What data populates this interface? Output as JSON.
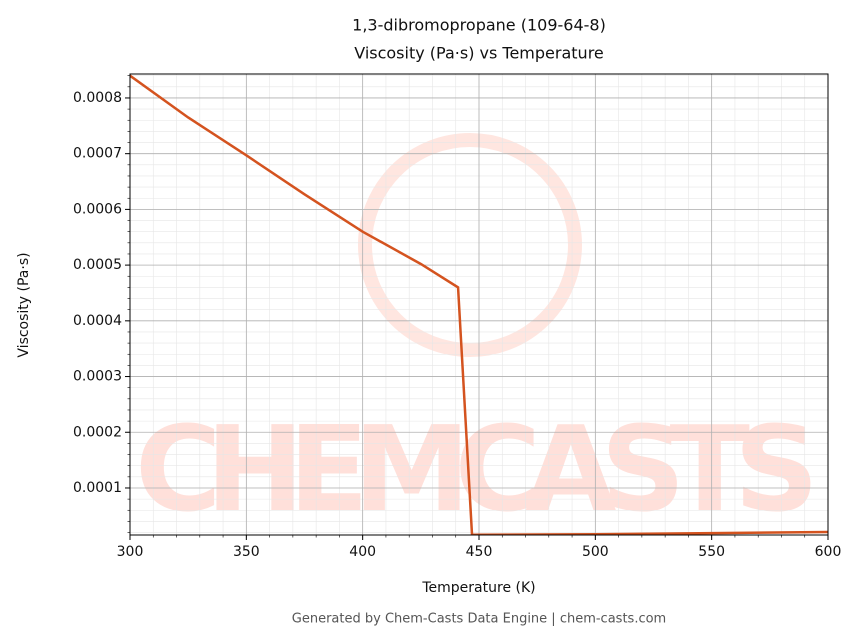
{
  "chart_data": {
    "type": "line",
    "title": "1,3-dibromopropane (109-64-8)",
    "subtitle": "Viscosity (Pa·s) vs Temperature",
    "xlabel": "Temperature (K)",
    "ylabel": "Viscosity (Pa·s)",
    "footer": "Generated by Chem-Casts Data Engine | chem-casts.com",
    "watermark": "CHEMCASTS",
    "x": [
      300,
      325,
      350,
      375,
      400,
      425,
      441,
      447,
      500,
      550,
      600
    ],
    "series": [
      {
        "name": "Viscosity",
        "color": "#d4531f",
        "values": [
          0.00084,
          0.000765,
          0.000697,
          0.000627,
          0.00056,
          0.000502,
          0.00046,
          1.6e-05,
          1.7e-05,
          1.9e-05,
          2.1e-05
        ]
      }
    ],
    "xlim": [
      300,
      600
    ],
    "xticks": [
      300,
      350,
      400,
      450,
      500,
      550,
      600
    ],
    "ylim": [
      1.56e-05,
      0.000843
    ],
    "yticks": [
      0.0001,
      0.0002,
      0.0003,
      0.0004,
      0.0005,
      0.0006,
      0.0007,
      0.0008
    ],
    "grid": true,
    "minor_grid": true
  }
}
